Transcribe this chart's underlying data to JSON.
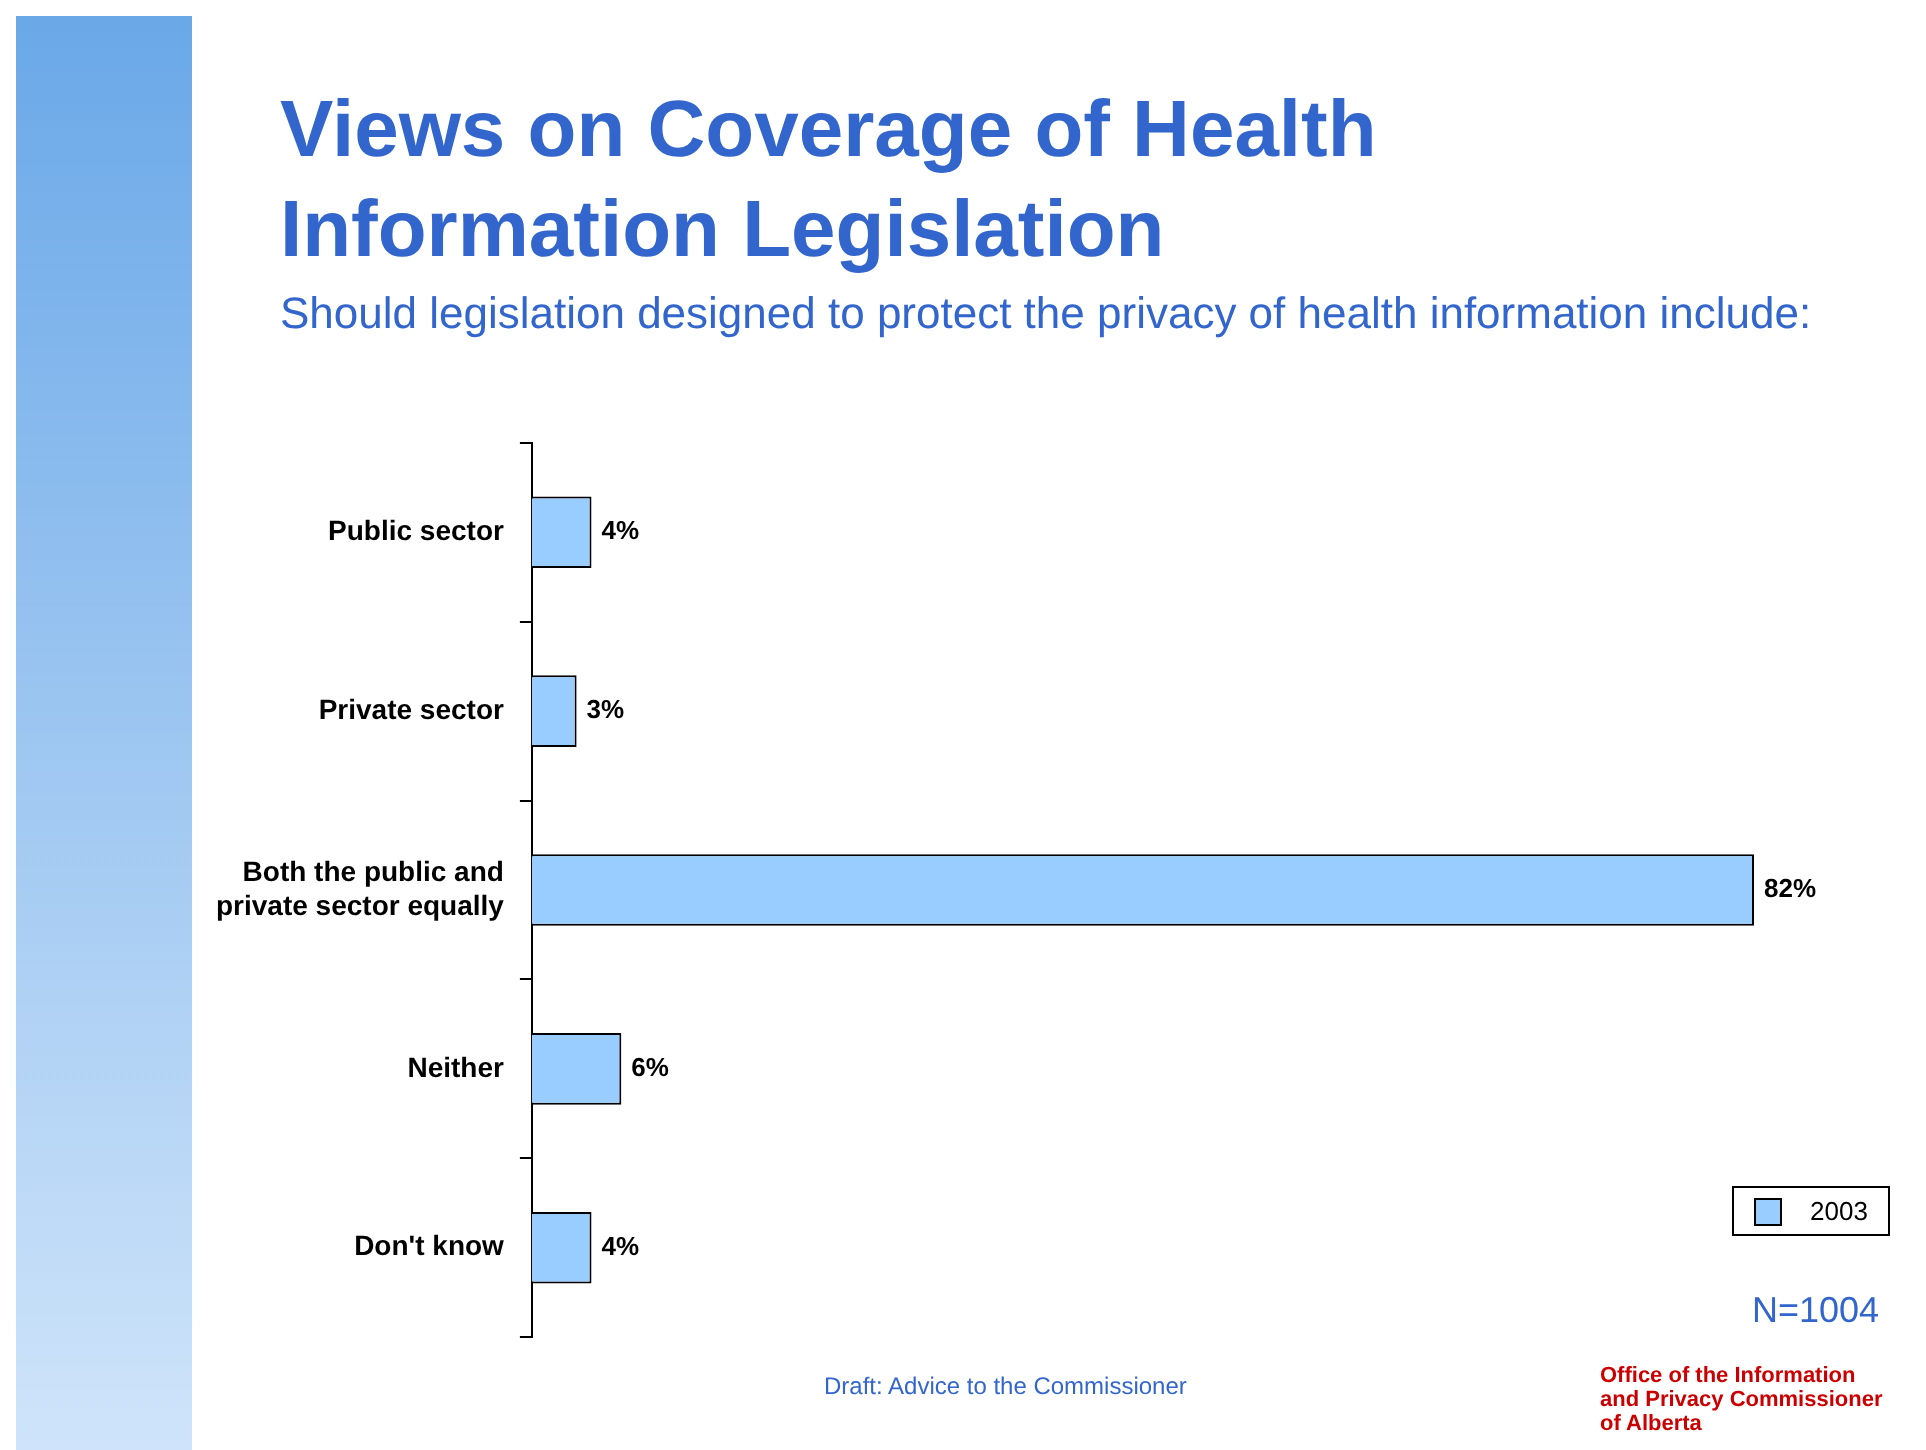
{
  "chart_data": {
    "type": "bar",
    "orientation": "horizontal",
    "title": "Views on Coverage of Health Information Legislation",
    "subtitle": "Should legislation designed to protect the privacy of health information include:",
    "categories": [
      "Public sector",
      "Private sector",
      "Both the public and private sector equally",
      "Neither",
      "Don't know"
    ],
    "series": [
      {
        "name": "2003",
        "color": "#99ccff",
        "values": [
          4,
          3,
          82,
          6,
          4
        ],
        "value_labels": [
          "4%",
          "3%",
          "82%",
          "6%",
          "4%"
        ]
      }
    ],
    "legend": "bottom right",
    "grid": false,
    "tick_labels": "y",
    "annotations": [
      "N=1004",
      "Draft: Advice to the Commissioner",
      "Office of the Information and Privacy Commissioner of Alberta"
    ]
  }
}
